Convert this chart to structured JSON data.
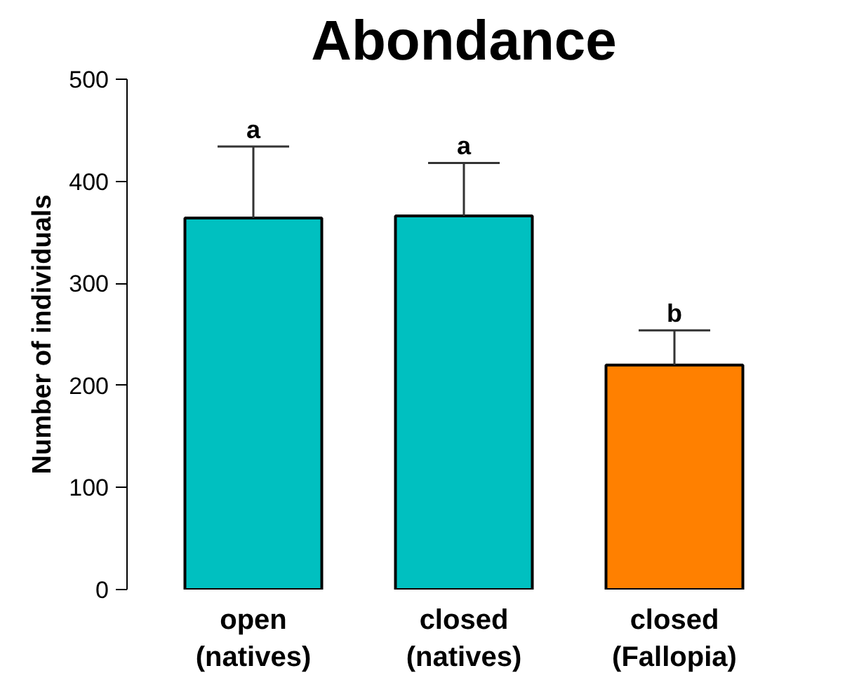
{
  "chart_data": {
    "type": "bar",
    "title": "Abondance",
    "ylabel": "Number of individuals",
    "categories": [
      "open\n(natives)",
      "closed\n(natives)",
      "closed\n(Fallopia)"
    ],
    "values": [
      364,
      366,
      220
    ],
    "colors": [
      "#00c0c0",
      "#00c0c0",
      "#ff8000"
    ],
    "errors": [
      [
        364,
        434
      ],
      [
        366,
        418
      ],
      [
        220,
        254
      ]
    ],
    "ylim": [
      0,
      500
    ],
    "yticks": [
      0,
      100,
      200,
      300,
      400,
      500
    ],
    "grid": false,
    "annotations": [
      "a",
      "a",
      "b"
    ]
  }
}
